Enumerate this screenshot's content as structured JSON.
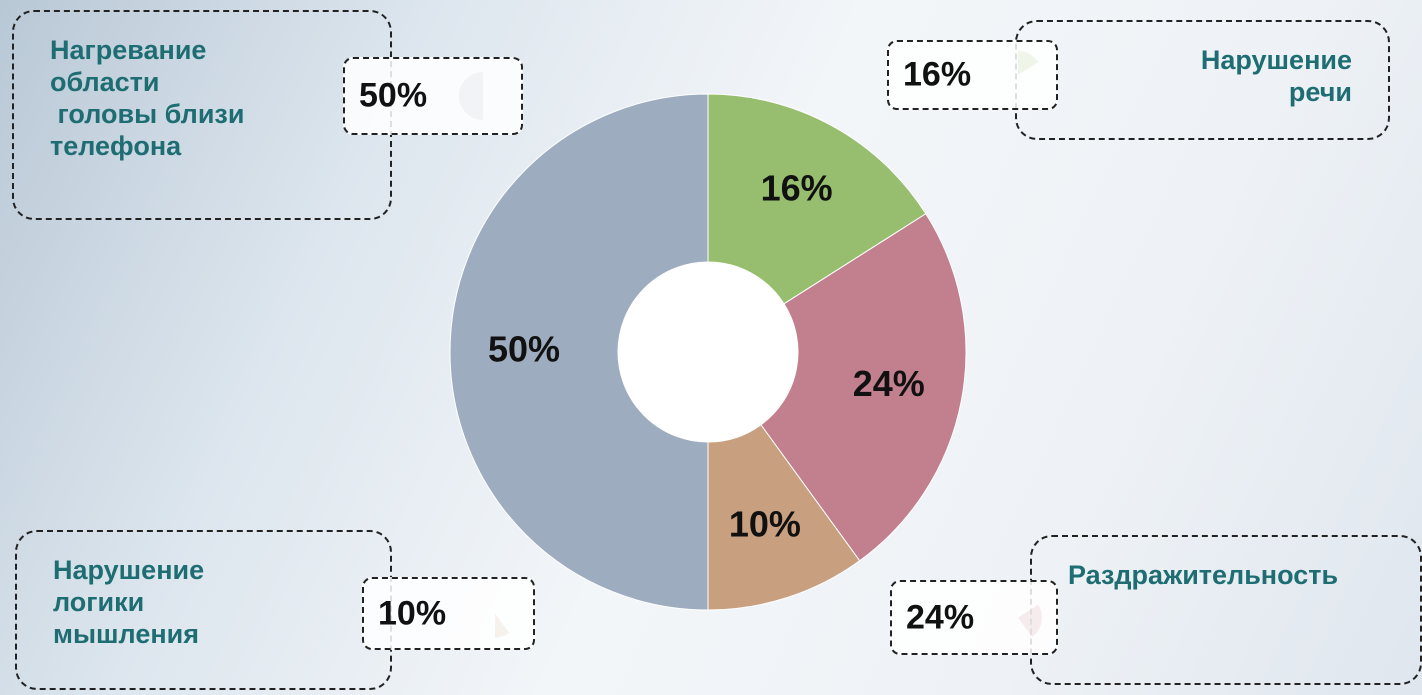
{
  "chart_data": {
    "type": "donut",
    "categories": [
      "Нарушение\nречи",
      "Раздражительность",
      "Нарушение\nлогики\nмышления",
      "Нагревание\nобласти\n головы близи\nтелефона"
    ],
    "values": [
      16,
      24,
      10,
      50
    ],
    "value_labels": [
      "16%",
      "24%",
      "10%",
      "50%"
    ],
    "colors": [
      "#97be6e",
      "#c2808e",
      "#c8a080",
      "#9eacbf"
    ]
  }
}
